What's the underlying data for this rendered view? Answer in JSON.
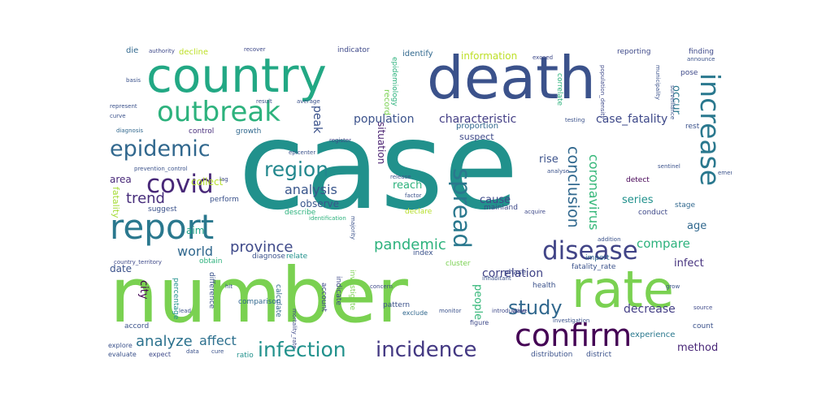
{
  "words": [
    {
      "text": "case",
      "color": "#21918c"
    },
    {
      "text": "number",
      "color": "#7ad151"
    },
    {
      "text": "death",
      "color": "#3b528b"
    },
    {
      "text": "country",
      "color": "#22a884"
    },
    {
      "text": "rate",
      "color": "#7ad151"
    },
    {
      "text": "report",
      "color": "#2a788e"
    },
    {
      "text": "confirm",
      "color": "#440154"
    },
    {
      "text": "outbreak",
      "color": "#2db27d"
    },
    {
      "text": "increase",
      "color": "#2a788e"
    },
    {
      "text": "disease",
      "color": "#414487"
    },
    {
      "text": "epidemic",
      "color": "#31688e"
    },
    {
      "text": "covid",
      "color": "#482878"
    },
    {
      "text": "spread",
      "color": "#2a788e"
    },
    {
      "text": "incidence",
      "color": "#443983"
    },
    {
      "text": "infection",
      "color": "#21918c"
    },
    {
      "text": "region",
      "color": "#23888e"
    },
    {
      "text": "study",
      "color": "#31688e"
    },
    {
      "text": "province",
      "color": "#3e4989"
    },
    {
      "text": "pandemic",
      "color": "#2db27d"
    },
    {
      "text": "analyze",
      "color": "#2c728e"
    },
    {
      "text": "trend",
      "color": "#472d7b"
    },
    {
      "text": "conclusion",
      "color": "#31688e"
    },
    {
      "text": "coronavirus",
      "color": "#35b779"
    },
    {
      "text": "analysis",
      "color": "#39568c"
    },
    {
      "text": "world",
      "color": "#31688e"
    },
    {
      "text": "affect",
      "color": "#2d708e"
    },
    {
      "text": "compare",
      "color": "#2db27d"
    },
    {
      "text": "characteristic",
      "color": "#433e85"
    },
    {
      "text": "population",
      "color": "#3b528b"
    },
    {
      "text": "case_fatality",
      "color": "#3e4989"
    },
    {
      "text": "decrease",
      "color": "#433e85"
    },
    {
      "text": "correlation",
      "color": "#414487"
    },
    {
      "text": "peak",
      "color": "#3b528b"
    },
    {
      "text": "method",
      "color": "#482677"
    },
    {
      "text": "age",
      "color": "#31688e"
    },
    {
      "text": "infect",
      "color": "#46327e"
    },
    {
      "text": "series",
      "color": "#21918c"
    },
    {
      "text": "occur",
      "color": "#2a788e"
    },
    {
      "text": "rise",
      "color": "#3b528b"
    },
    {
      "text": "reach",
      "color": "#2db27d"
    },
    {
      "text": "cause",
      "color": "#3e4989"
    },
    {
      "text": "city",
      "color": "#440154"
    },
    {
      "text": "people",
      "color": "#35b779"
    },
    {
      "text": "information",
      "color": "#bddf26"
    },
    {
      "text": "situation",
      "color": "#481f70"
    },
    {
      "text": "area",
      "color": "#482878"
    },
    {
      "text": "collect",
      "color": "#b5de2b"
    },
    {
      "text": "date",
      "color": "#3b528b"
    },
    {
      "text": "observe",
      "color": "#39568c"
    },
    {
      "text": "aim",
      "color": "#20a386"
    },
    {
      "text": "fatality",
      "color": "#a5db36"
    },
    {
      "text": "experience",
      "color": "#2a788e"
    },
    {
      "text": "suspect",
      "color": "#3e4989"
    },
    {
      "text": "proportion",
      "color": "#31688e"
    },
    {
      "text": "decline",
      "color": "#bddf26"
    },
    {
      "text": "identify",
      "color": "#31688e"
    },
    {
      "text": "indicator",
      "color": "#3e4989"
    },
    {
      "text": "reporting",
      "color": "#3e4989"
    },
    {
      "text": "finding",
      "color": "#3e4989"
    },
    {
      "text": "record",
      "color": "#7ad151"
    },
    {
      "text": "epidemiology",
      "color": "#2db27d"
    },
    {
      "text": "perform",
      "color": "#3b528b"
    },
    {
      "text": "detect",
      "color": "#440154"
    },
    {
      "text": "stage",
      "color": "#31688e"
    },
    {
      "text": "conduct",
      "color": "#3e4989"
    },
    {
      "text": "declare",
      "color": "#b5de2b"
    },
    {
      "text": "mainland",
      "color": "#3e4989"
    },
    {
      "text": "correlate",
      "color": "#2db27d"
    },
    {
      "text": "growth",
      "color": "#31688e"
    },
    {
      "text": "control",
      "color": "#472d7b"
    },
    {
      "text": "suggest",
      "color": "#3b528b"
    },
    {
      "text": "describe",
      "color": "#2db27d"
    },
    {
      "text": "diagnose",
      "color": "#3b528b"
    },
    {
      "text": "relate",
      "color": "#21918c"
    },
    {
      "text": "index",
      "color": "#3b528b"
    },
    {
      "text": "cluster",
      "color": "#7ad151"
    },
    {
      "text": "import",
      "color": "#31688e"
    },
    {
      "text": "fatality_rate",
      "color": "#3b528b"
    },
    {
      "text": "phase",
      "color": "#3e4989"
    },
    {
      "text": "health",
      "color": "#3b528b"
    },
    {
      "text": "percentage",
      "color": "#21918c"
    },
    {
      "text": "obtain",
      "color": "#2db27d"
    },
    {
      "text": "difference",
      "color": "#3b528b"
    },
    {
      "text": "comparison",
      "color": "#31688e"
    },
    {
      "text": "calculate",
      "color": "#31688e"
    },
    {
      "text": "account",
      "color": "#3e4989"
    },
    {
      "text": "indicate",
      "color": "#3e4989"
    },
    {
      "text": "investigate",
      "color": "#7ad151"
    },
    {
      "text": "pattern",
      "color": "#3b528b"
    },
    {
      "text": "accord",
      "color": "#3b528b"
    },
    {
      "text": "count",
      "color": "#3b528b"
    },
    {
      "text": "ratio",
      "color": "#21918c"
    },
    {
      "text": "distribution",
      "color": "#3b528b"
    },
    {
      "text": "district",
      "color": "#3b528b"
    },
    {
      "text": "expect",
      "color": "#3e4989"
    },
    {
      "text": "explore",
      "color": "#3b528b"
    },
    {
      "text": "evaluate",
      "color": "#3b528b"
    },
    {
      "text": "figure",
      "color": "#3e4989"
    },
    {
      "text": "exclude",
      "color": "#31688e"
    },
    {
      "text": "die",
      "color": "#31688e"
    },
    {
      "text": "authority",
      "color": "#3e4989"
    },
    {
      "text": "recover",
      "color": "#3e4989"
    },
    {
      "text": "average",
      "color": "#3b528b"
    },
    {
      "text": "represent",
      "color": "#3b528b"
    },
    {
      "text": "diagnosis",
      "color": "#31688e"
    },
    {
      "text": "prevention_control",
      "color": "#3b528b"
    },
    {
      "text": "lag",
      "color": "#3e4989"
    },
    {
      "text": "identification",
      "color": "#2db27d"
    },
    {
      "text": "majority",
      "color": "#3b528b"
    },
    {
      "text": "register",
      "color": "#3e4989"
    },
    {
      "text": "introduction",
      "color": "#3e4989"
    },
    {
      "text": "release",
      "color": "#3b528b"
    },
    {
      "text": "factor",
      "color": "#3b528b"
    },
    {
      "text": "acquire",
      "color": "#3e4989"
    },
    {
      "text": "addition",
      "color": "#3b528b"
    },
    {
      "text": "inhabitant",
      "color": "#3b528b"
    },
    {
      "text": "concern",
      "color": "#3e4989"
    },
    {
      "text": "testing",
      "color": "#3b528b"
    },
    {
      "text": "surveillance",
      "color": "#3b528b"
    },
    {
      "text": "municipality",
      "color": "#3b528b"
    },
    {
      "text": "population_density",
      "color": "#3e4989"
    },
    {
      "text": "epicenter",
      "color": "#3b528b"
    },
    {
      "text": "result",
      "color": "#3b528b"
    },
    {
      "text": "pose",
      "color": "#3e4989"
    },
    {
      "text": "rest",
      "color": "#3b528b"
    },
    {
      "text": "exceed",
      "color": "#3e4989"
    },
    {
      "text": "announce",
      "color": "#3b528b"
    },
    {
      "text": "basis",
      "color": "#3b528b"
    },
    {
      "text": "curve",
      "color": "#3b528b"
    },
    {
      "text": "mortality_rate",
      "color": "#3e4989"
    },
    {
      "text": "investigation",
      "color": "#3b528b"
    },
    {
      "text": "monitor",
      "color": "#3b528b"
    },
    {
      "text": "country_territory",
      "color": "#3e4989"
    },
    {
      "text": "grow",
      "color": "#3b528b"
    },
    {
      "text": "source",
      "color": "#3e4989"
    },
    {
      "text": "sentinel",
      "color": "#3b528b"
    },
    {
      "text": "analyse",
      "color": "#3b528b"
    },
    {
      "text": "data",
      "color": "#3b528b"
    },
    {
      "text": "cure",
      "color": "#3b528b"
    },
    {
      "text": "lead",
      "color": "#3b528b"
    },
    {
      "text": "wave",
      "color": "#3e4989"
    },
    {
      "text": "hit",
      "color": "#3b528b"
    },
    {
      "text": "emer",
      "color": "#3b528b"
    }
  ]
}
